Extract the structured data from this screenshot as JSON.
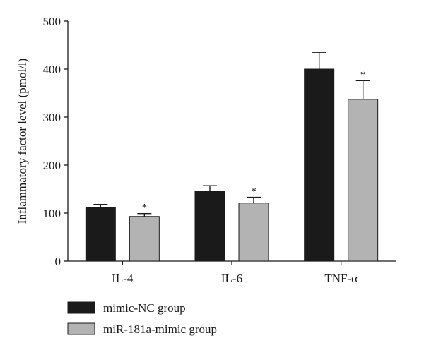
{
  "chart_data": {
    "type": "bar",
    "title": "",
    "xlabel": "",
    "ylabel": "Inflammatory factor level (pmol/l)",
    "ylim": [
      0,
      500
    ],
    "yticks": [
      0,
      100,
      200,
      300,
      400,
      500
    ],
    "categories": [
      "IL-4",
      "IL-6",
      "TNF-α"
    ],
    "series": [
      {
        "name": "mimic-NC group",
        "values": [
          112,
          145,
          400
        ],
        "errors": [
          6,
          12,
          35
        ],
        "color": "#1a1a1a"
      },
      {
        "name": "miR-181a-mimic group",
        "values": [
          93,
          121,
          337
        ],
        "errors": [
          6,
          12,
          39
        ],
        "color": "#b3b3b3"
      }
    ],
    "significance": [
      {
        "category": "IL-4",
        "series": "miR-181a-mimic group",
        "label": "*"
      },
      {
        "category": "IL-6",
        "series": "miR-181a-mimic group",
        "label": "*"
      },
      {
        "category": "TNF-α",
        "series": "miR-181a-mimic group",
        "label": "*"
      }
    ],
    "legend_position": "bottom-left",
    "grid": false
  }
}
